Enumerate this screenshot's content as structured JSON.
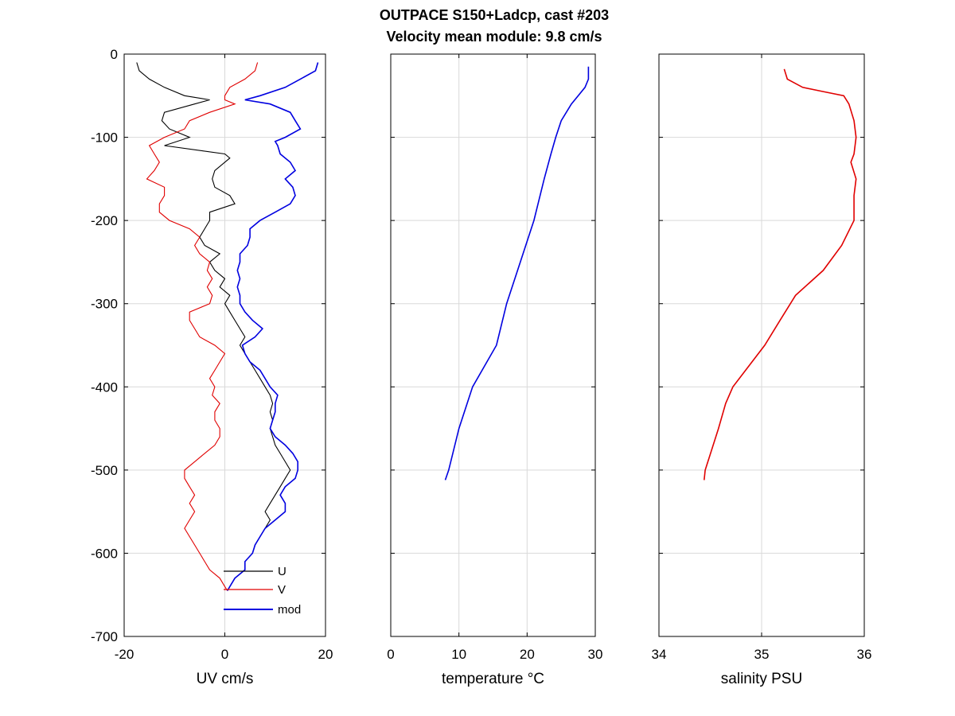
{
  "title_line1": "OUTPACE S150+Ladcp, cast #203",
  "title_line2": "Velocity mean module:  9.8 cm/s",
  "chart_data": [
    {
      "type": "line",
      "xlabel": "UV cm/s",
      "ylabel": "",
      "xlim": [
        -20,
        20
      ],
      "ylim": [
        -700,
        0
      ],
      "xticks": [
        -20,
        0,
        20
      ],
      "xtick_labels": [
        "-20",
        "0",
        "20"
      ],
      "yticks": [
        0,
        -100,
        -200,
        -300,
        -400,
        -500,
        -600,
        -700
      ],
      "ytick_labels": [
        "0",
        "-100",
        "-200",
        "-300",
        "-400",
        "-500",
        "-600",
        "-700"
      ],
      "grid": true,
      "legend": "bottom-right",
      "series": [
        {
          "name": "U",
          "color": "#000000",
          "depth": [
            -10,
            -20,
            -30,
            -40,
            -50,
            -55,
            -60,
            -70,
            -80,
            -90,
            -100,
            -110,
            -120,
            -125,
            -130,
            -140,
            -150,
            -160,
            -170,
            -180,
            -190,
            -200,
            -210,
            -220,
            -230,
            -240,
            -250,
            -260,
            -270,
            -280,
            -290,
            -300,
            -310,
            -320,
            -330,
            -340,
            -350,
            -360,
            -370,
            -380,
            -390,
            -400,
            -410,
            -420,
            -430,
            -440,
            -450,
            -460,
            -470,
            -480,
            -490,
            -500,
            -510,
            -520,
            -530,
            -540,
            -550,
            -560,
            -570,
            -580,
            -590,
            -600,
            -610,
            -620,
            -630,
            -640,
            -645
          ],
          "values": [
            -17.5,
            -17,
            -15,
            -12,
            -8,
            -3,
            -6,
            -12,
            -12.5,
            -11,
            -7,
            -12,
            0,
            1,
            0,
            -2,
            -2.5,
            -2,
            1,
            2,
            -3,
            -3,
            -4,
            -5,
            -4,
            -1,
            -3,
            -2,
            0,
            -1,
            1,
            0,
            1,
            2,
            3,
            4,
            3,
            4,
            5,
            6,
            7,
            8,
            9,
            9.5,
            9,
            9.5,
            9,
            9.5,
            10,
            11,
            12,
            13,
            12,
            11,
            10,
            9,
            8,
            9,
            8,
            7,
            6,
            5.5,
            4,
            4,
            2,
            1,
            0.5
          ]
        },
        {
          "name": "V",
          "color": "#e00000",
          "depth": [
            -10,
            -20,
            -30,
            -40,
            -50,
            -55,
            -60,
            -70,
            -80,
            -90,
            -100,
            -110,
            -120,
            -130,
            -140,
            -150,
            -160,
            -170,
            -180,
            -190,
            -200,
            -210,
            -220,
            -230,
            -240,
            -250,
            -260,
            -270,
            -280,
            -290,
            -300,
            -310,
            -320,
            -330,
            -340,
            -350,
            -360,
            -370,
            -380,
            -390,
            -400,
            -410,
            -420,
            -430,
            -440,
            -450,
            -460,
            -470,
            -480,
            -490,
            -500,
            -510,
            -520,
            -530,
            -540,
            -550,
            -560,
            -570,
            -580,
            -590,
            -600,
            -610,
            -620,
            -630,
            -640,
            -645
          ],
          "values": [
            6.5,
            6,
            4,
            1,
            0,
            0,
            2,
            -3,
            -7,
            -8,
            -12,
            -15,
            -14,
            -13,
            -14,
            -15.5,
            -12,
            -12,
            -13,
            -13,
            -11,
            -7,
            -5,
            -6,
            -5,
            -3,
            -3.5,
            -2.5,
            -3.5,
            -2.5,
            -3,
            -7,
            -7,
            -6,
            -5,
            -2,
            0,
            -1,
            -2,
            -3,
            -2,
            -2.5,
            -1,
            -2,
            -2,
            -1,
            -1,
            -2,
            -4,
            -6,
            -8,
            -8,
            -7,
            -6,
            -7,
            -6,
            -7,
            -8,
            -7,
            -6,
            -5,
            -4,
            -3,
            -1,
            0,
            0.5
          ]
        },
        {
          "name": "mod",
          "color": "#0000e0",
          "depth": [
            -10,
            -20,
            -30,
            -40,
            -50,
            -55,
            -60,
            -70,
            -80,
            -90,
            -100,
            -105,
            -110,
            -120,
            -130,
            -140,
            -150,
            -160,
            -170,
            -180,
            -190,
            -200,
            -210,
            -220,
            -230,
            -240,
            -250,
            -260,
            -270,
            -280,
            -290,
            -300,
            -310,
            -320,
            -330,
            -340,
            -350,
            -360,
            -370,
            -380,
            -390,
            -400,
            -410,
            -420,
            -430,
            -440,
            -450,
            -460,
            -470,
            -480,
            -490,
            -500,
            -510,
            -520,
            -530,
            -540,
            -550,
            -560,
            -570,
            -580,
            -590,
            -600,
            -610,
            -620,
            -630,
            -640,
            -645
          ],
          "values": [
            18.5,
            18,
            15,
            12,
            7,
            4,
            9,
            13,
            14,
            15,
            12,
            10,
            10.5,
            11,
            13,
            14,
            12,
            13.5,
            14,
            13,
            10,
            7,
            5,
            5,
            4.5,
            3,
            3,
            2.5,
            3,
            2.5,
            3,
            3,
            4,
            5.5,
            7.5,
            6,
            3.5,
            4,
            5,
            7,
            8,
            9,
            10.5,
            10,
            10,
            9.5,
            9,
            10,
            12,
            13.5,
            14.5,
            14.5,
            14,
            12,
            11,
            12,
            12,
            10,
            8,
            7,
            6,
            5.5,
            4,
            4,
            2,
            1,
            0.5
          ]
        }
      ]
    },
    {
      "type": "line",
      "xlabel": "temperature °C",
      "ylabel": "",
      "xlim": [
        0,
        30
      ],
      "ylim": [
        -700,
        0
      ],
      "xticks": [
        0,
        10,
        20,
        30
      ],
      "xtick_labels": [
        "0",
        "10",
        "20",
        "30"
      ],
      "yticks": [
        0,
        -100,
        -200,
        -300,
        -400,
        -500,
        -600,
        -700
      ],
      "ytick_labels": [
        "",
        "",
        "",
        "",
        "",
        "",
        "",
        ""
      ],
      "grid": true,
      "series": [
        {
          "color": "#0000e0",
          "depth": [
            -15,
            -30,
            -40,
            -50,
            -60,
            -80,
            -100,
            -120,
            -150,
            -200,
            -250,
            -300,
            -350,
            -400,
            -450,
            -500,
            -512
          ],
          "values": [
            29,
            29,
            28.5,
            27.5,
            26.5,
            25,
            24.2,
            23.5,
            22.5,
            21,
            19,
            17,
            15.5,
            12,
            10,
            8.5,
            8
          ]
        }
      ]
    },
    {
      "type": "line",
      "xlabel": "salinity PSU",
      "ylabel": "",
      "xlim": [
        34,
        36
      ],
      "ylim": [
        -700,
        0
      ],
      "xticks": [
        34,
        35,
        36
      ],
      "xtick_labels": [
        "34",
        "35",
        "36"
      ],
      "yticks": [
        0,
        -100,
        -200,
        -300,
        -400,
        -500,
        -600,
        -700
      ],
      "ytick_labels": [
        "",
        "",
        "",
        "",
        "",
        "",
        "",
        ""
      ],
      "grid": true,
      "series": [
        {
          "color": "#e00000",
          "depth": [
            -18,
            -30,
            -40,
            -45,
            -50,
            -60,
            -80,
            -100,
            -120,
            -130,
            -150,
            -170,
            -200,
            -230,
            -260,
            -290,
            -320,
            -350,
            -400,
            -420,
            -450,
            -500,
            -512
          ],
          "values": [
            35.22,
            35.25,
            35.4,
            35.6,
            35.8,
            35.85,
            35.9,
            35.92,
            35.9,
            35.87,
            35.92,
            35.9,
            35.9,
            35.78,
            35.6,
            35.33,
            35.18,
            35.03,
            34.72,
            34.65,
            34.58,
            34.45,
            34.44
          ]
        }
      ]
    }
  ]
}
